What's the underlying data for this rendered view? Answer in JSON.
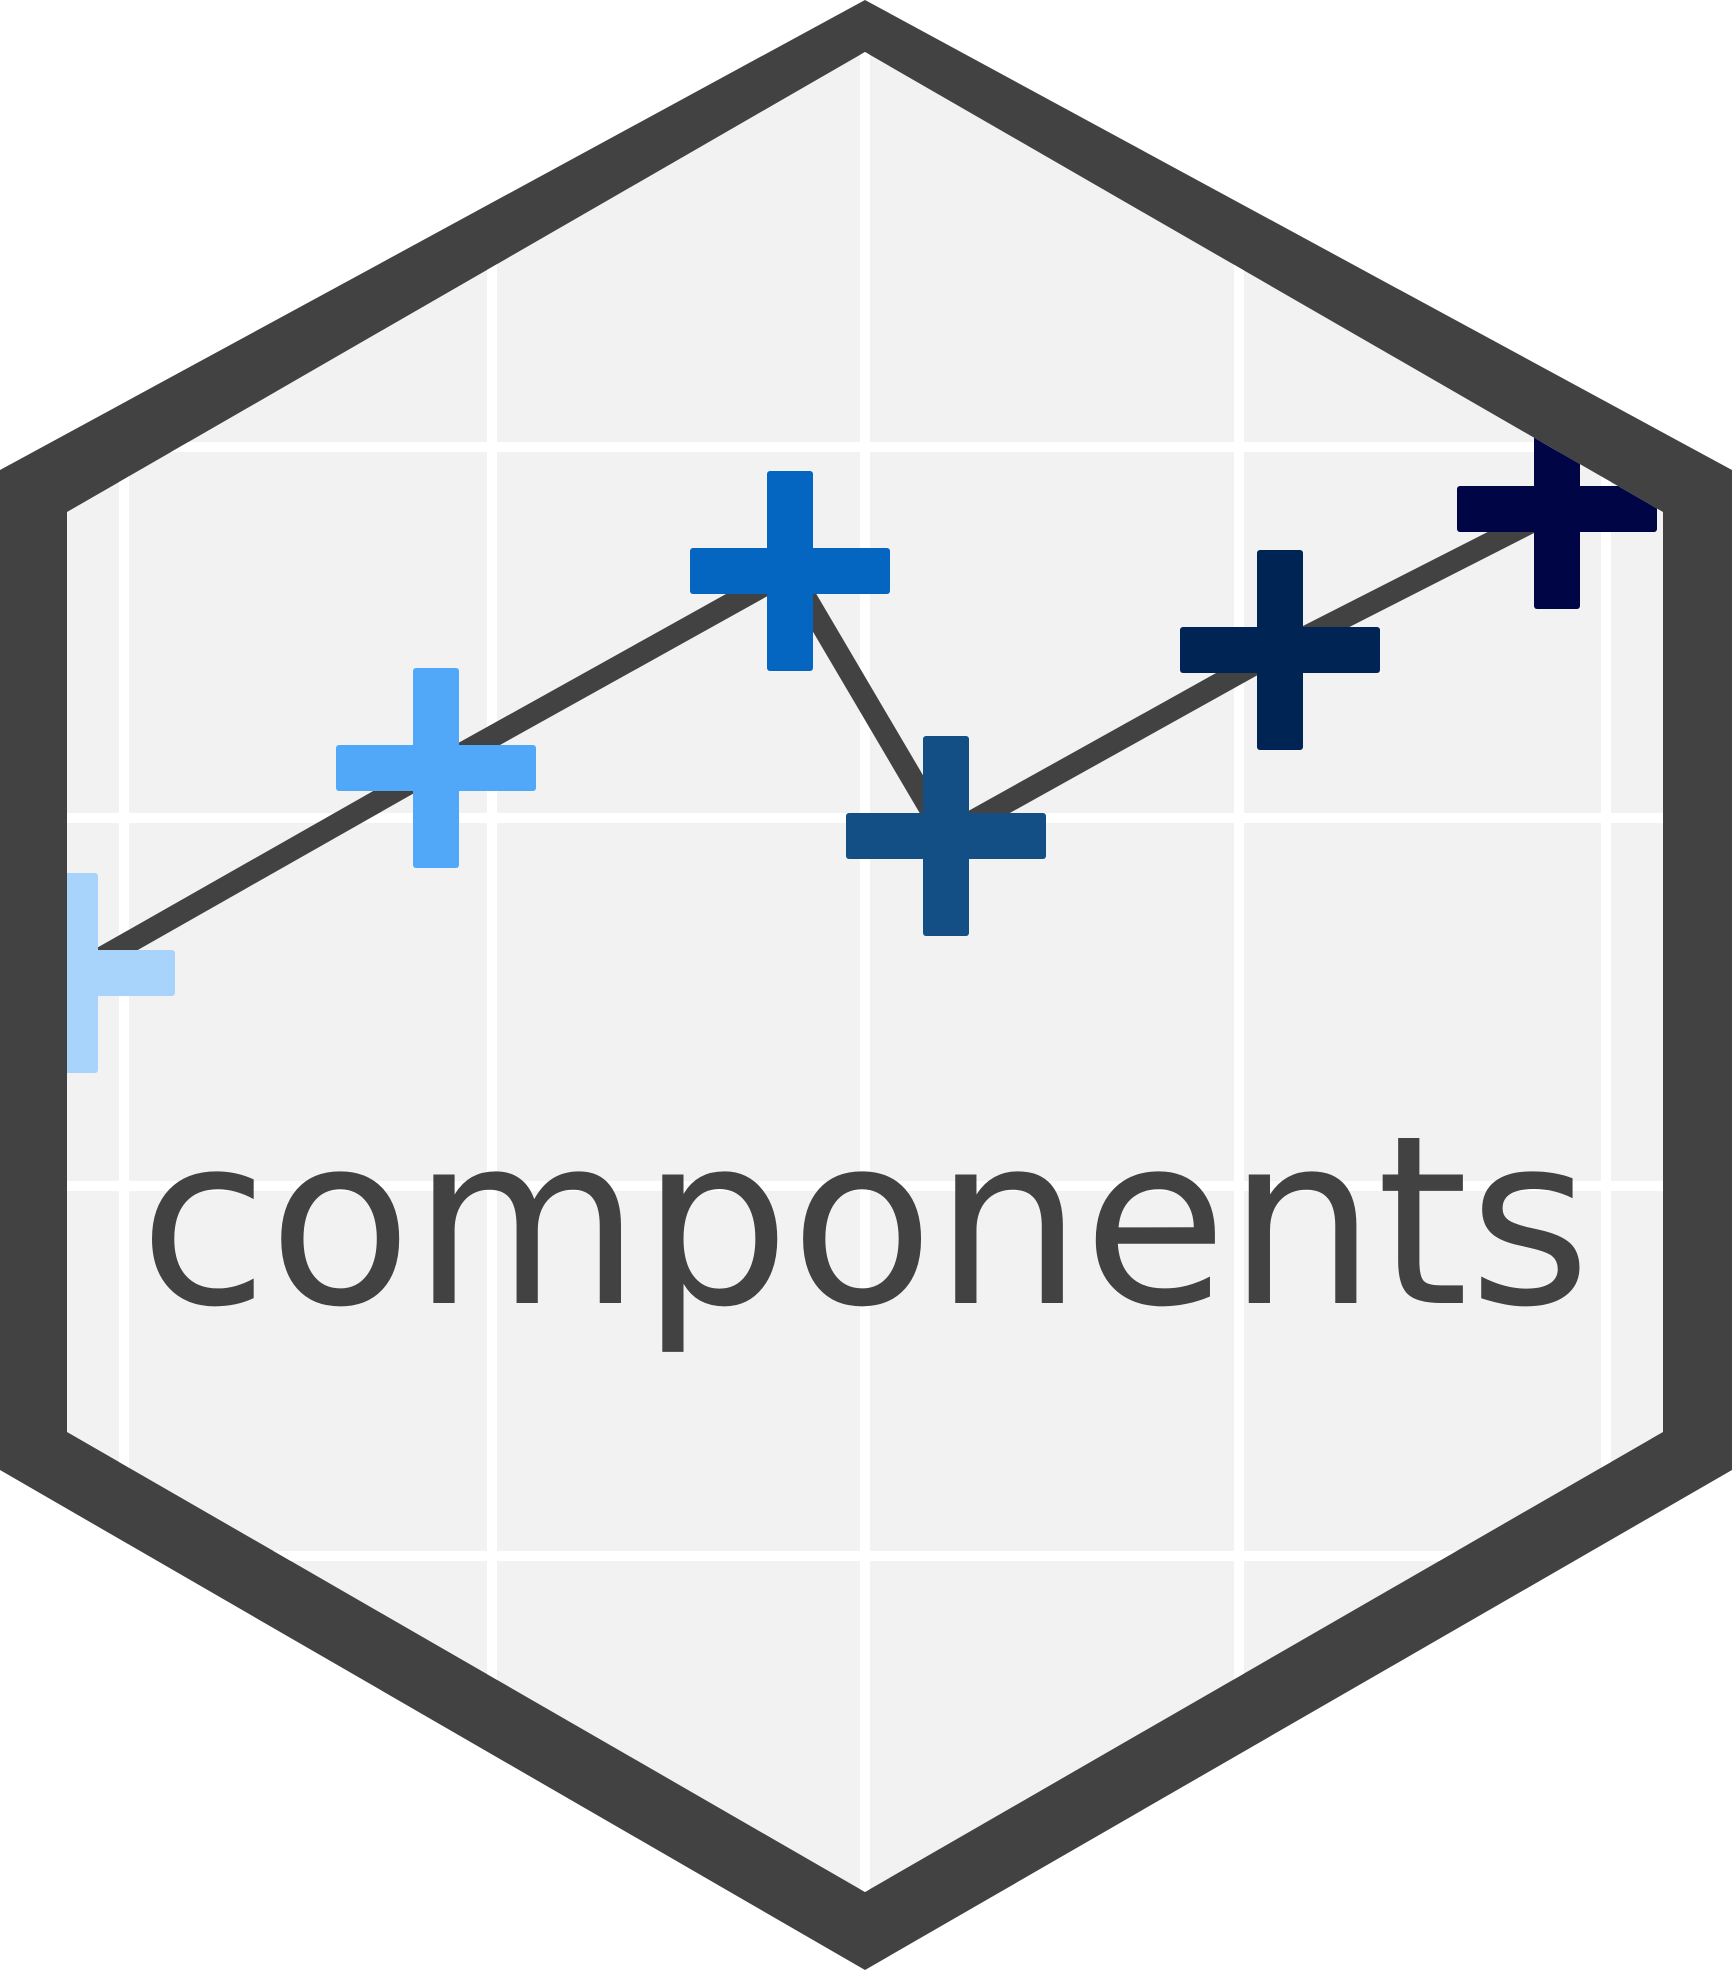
{
  "logo": {
    "wordmark": "components",
    "colors": {
      "border": "#424242",
      "panel": "#f2f2f2",
      "grid": "#ffffff",
      "line": "#424242",
      "text": "#424242"
    },
    "markers": [
      {
        "name": "marker-1",
        "color": "#a8d4fc"
      },
      {
        "name": "marker-2",
        "color": "#52a8f8"
      },
      {
        "name": "marker-3",
        "color": "#0566c2"
      },
      {
        "name": "marker-4",
        "color": "#134e84"
      },
      {
        "name": "marker-5",
        "color": "#002454"
      },
      {
        "name": "marker-6",
        "color": "#000545"
      }
    ]
  }
}
